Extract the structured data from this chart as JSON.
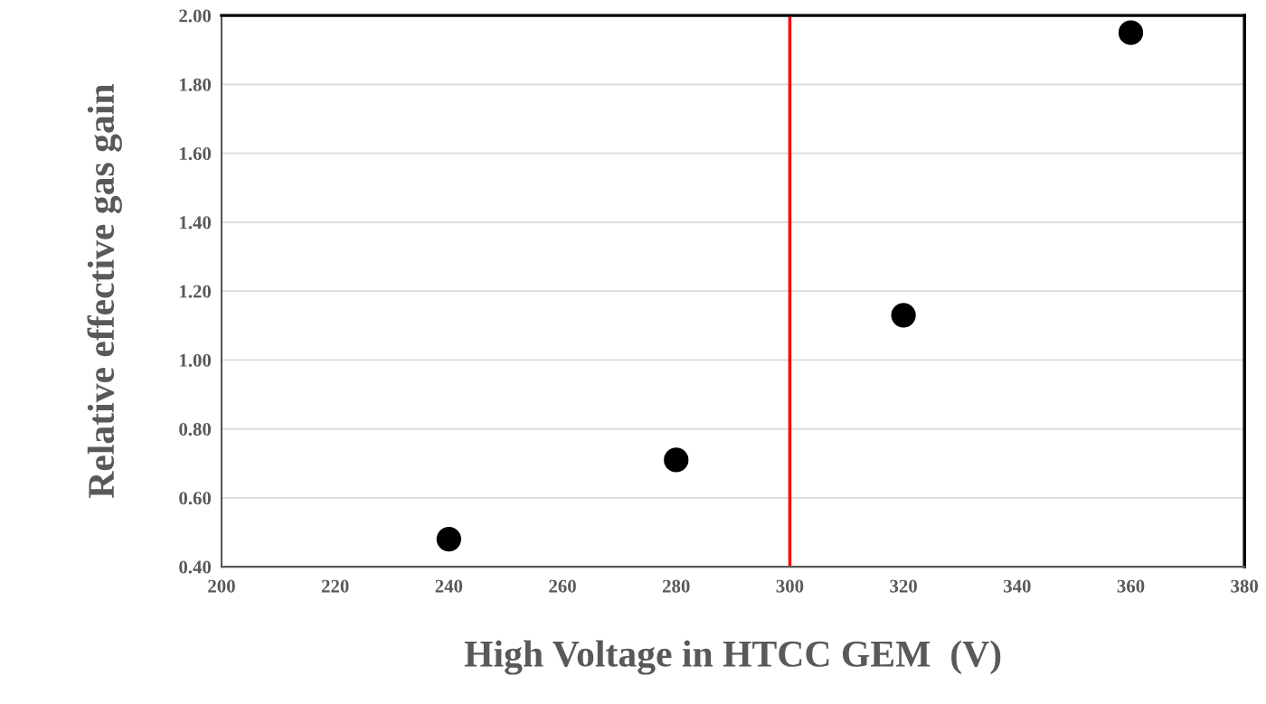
{
  "chart_data": {
    "type": "scatter",
    "xlabel": "High Voltage in HTCC GEM  (V)",
    "ylabel": "Relative effective gas gain",
    "x": [
      240,
      280,
      320,
      360
    ],
    "values": [
      0.48,
      0.71,
      1.13,
      1.95
    ],
    "color": "#000000",
    "marker": "circle",
    "xlim": [
      200,
      380
    ],
    "xticks": [
      200,
      220,
      240,
      260,
      280,
      300,
      320,
      340,
      360,
      380
    ],
    "ylim": [
      0.4,
      2.0
    ],
    "yticks": [
      {
        "value": 0.4,
        "label": "0.40"
      },
      {
        "value": 0.6,
        "label": "0.60"
      },
      {
        "value": 0.8,
        "label": "0.80"
      },
      {
        "value": 1.0,
        "label": "1.00"
      },
      {
        "value": 1.2,
        "label": "1.20"
      },
      {
        "value": 1.4,
        "label": "1.40"
      },
      {
        "value": 1.6,
        "label": "1.60"
      },
      {
        "value": 1.8,
        "label": "1.80"
      },
      {
        "value": 2.0,
        "label": "2.00"
      }
    ],
    "grid": "y",
    "ref_lines": [
      {
        "axis": "x",
        "value": 300,
        "color": "#ff0000"
      }
    ]
  }
}
